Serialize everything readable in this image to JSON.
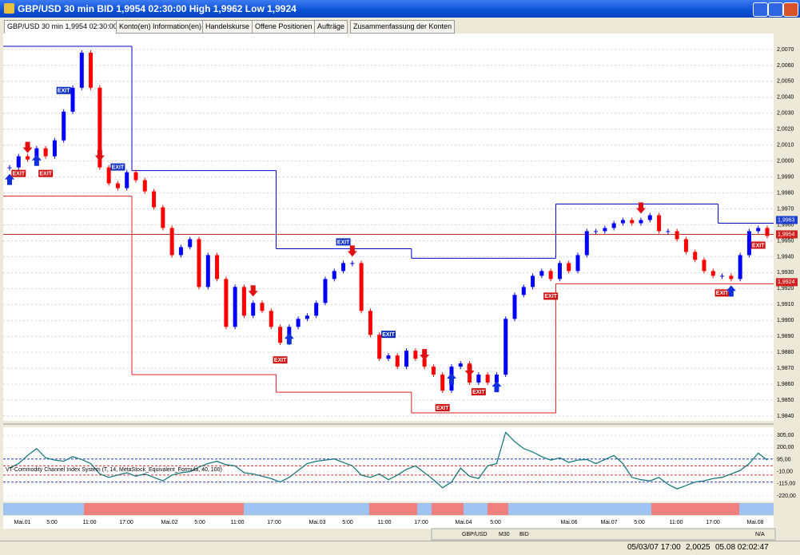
{
  "window": {
    "title": "GBP/USD 30 min BID 1,9954 02:30:00 High 1,9962 Low 1,9924"
  },
  "tabs": [
    "GBP/USD 30 min 1,9954 02:30:00",
    "Konto(en) Information(en)",
    "Handelskurse",
    "Offene Positionen",
    "Aufträge",
    "Zusammenfassung der Konten"
  ],
  "candles": {
    "closes": [
      1.9996,
      2.0003,
      2.0001,
      2.0008,
      2.0003,
      2.0013,
      2.0031,
      2.0046,
      2.0068,
      2.0046,
      1.9996,
      1.9986,
      1.9983,
      1.9993,
      1.9988,
      1.9981,
      1.9971,
      1.9958,
      1.9941,
      1.9946,
      1.9951,
      1.9921,
      1.9941,
      1.9926,
      1.9896,
      1.9921,
      1.9903,
      1.9911,
      1.9906,
      1.9896,
      1.9886,
      1.9896,
      1.9901,
      1.9903,
      1.9911,
      1.9926,
      1.9931,
      1.9936,
      1.9936,
      1.9906,
      1.9891,
      1.9876,
      1.9878,
      1.9871,
      1.9881,
      1.9876,
      1.9871,
      1.9866,
      1.9856,
      1.9871,
      1.9873,
      1.9861,
      1.9866,
      1.9861,
      1.9866,
      1.9901,
      1.9916,
      1.9921,
      1.9928,
      1.9931,
      1.9926,
      1.9936,
      1.9931,
      1.9941,
      1.9956,
      1.9956,
      1.9958,
      1.9961,
      1.9963,
      1.9961,
      1.9963,
      1.9966,
      1.9956,
      1.9956,
      1.9951,
      1.9943,
      1.9938,
      1.9931,
      1.9928,
      1.9928,
      1.9926,
      1.9941,
      1.9956,
      1.9958,
      1.9953
    ],
    "up_color": "#0000ff",
    "down_color": "#ff0000",
    "ylim": [
      1.9837,
      2.008
    ],
    "yticks": [
      {
        "value": 1.984,
        "label": "1,9840"
      },
      {
        "value": 1.985,
        "label": "1,9850"
      },
      {
        "value": 1.986,
        "label": "1,9860"
      },
      {
        "value": 1.987,
        "label": "1,9870"
      },
      {
        "value": 1.988,
        "label": "1,9880"
      },
      {
        "value": 1.989,
        "label": "1,9890"
      },
      {
        "value": 1.99,
        "label": "1,9900"
      },
      {
        "value": 1.991,
        "label": "1,9910"
      },
      {
        "value": 1.992,
        "label": "1,9920"
      },
      {
        "value": 1.993,
        "label": "1,9930"
      },
      {
        "value": 1.994,
        "label": "1,9940"
      },
      {
        "value": 1.995,
        "label": "1,9950"
      },
      {
        "value": 1.996,
        "label": "1,9960"
      },
      {
        "value": 1.997,
        "label": "1,9970"
      },
      {
        "value": 1.998,
        "label": "1,9980"
      },
      {
        "value": 1.999,
        "label": "1,9990"
      },
      {
        "value": 2.0,
        "label": "2,0000"
      },
      {
        "value": 2.001,
        "label": "2,0010"
      },
      {
        "value": 2.002,
        "label": "2,0020"
      },
      {
        "value": 2.003,
        "label": "2,0030"
      },
      {
        "value": 2.004,
        "label": "2,0040"
      },
      {
        "value": 2.005,
        "label": "2,0050"
      },
      {
        "value": 2.006,
        "label": "2,0060"
      },
      {
        "value": 2.007,
        "label": "2,0070"
      }
    ],
    "upper_steps": [
      {
        "start": 0,
        "level": 2.0072
      },
      {
        "start": 14,
        "level": 1.9994
      },
      {
        "start": 30,
        "level": 1.9945
      },
      {
        "start": 45,
        "level": 1.9939
      },
      {
        "start": 61,
        "level": 1.9973
      },
      {
        "start": 79,
        "level": 1.9961
      }
    ],
    "lower_steps": [
      {
        "start": 0,
        "level": 1.9978
      },
      {
        "start": 14,
        "level": 1.9866
      },
      {
        "start": 30,
        "level": 1.9855
      },
      {
        "start": 45,
        "level": 1.9842
      },
      {
        "start": 61,
        "level": 1.9923
      }
    ],
    "upper_color": "#0000cc",
    "lower_color": "#e02020",
    "current_line": 1.9954,
    "price_tags": [
      {
        "value": 1.9963,
        "label": "1,9963",
        "color": "#1c3fd0"
      },
      {
        "value": 1.9954,
        "label": "1,9954",
        "color": "#d02020"
      },
      {
        "value": 1.9924,
        "label": "1,9924",
        "color": "#d02020"
      }
    ],
    "signals": [
      {
        "kind": "buy",
        "index": 0
      },
      {
        "kind": "sell",
        "index": 2
      },
      {
        "kind": "exit",
        "index": 1,
        "label": "EXIT"
      },
      {
        "kind": "buy",
        "index": 3
      },
      {
        "kind": "exit",
        "index": 4,
        "label": "EXIT"
      },
      {
        "kind": "exit",
        "index": 6,
        "label": "EXIT"
      },
      {
        "kind": "sell",
        "index": 10
      },
      {
        "kind": "exit",
        "index": 12,
        "label": "EXIT"
      },
      {
        "kind": "sell",
        "index": 27
      },
      {
        "kind": "buy",
        "index": 31
      },
      {
        "kind": "exit",
        "index": 30,
        "label": "EXIT"
      },
      {
        "kind": "exit",
        "index": 37,
        "label": "EXIT"
      },
      {
        "kind": "sell",
        "index": 38
      },
      {
        "kind": "exit",
        "index": 42,
        "label": "EXIT"
      },
      {
        "kind": "sell",
        "index": 46
      },
      {
        "kind": "buy",
        "index": 49
      },
      {
        "kind": "exit",
        "index": 48,
        "label": "EXIT"
      },
      {
        "kind": "sell",
        "index": 51
      },
      {
        "kind": "exit",
        "index": 52,
        "label": "EXIT"
      },
      {
        "kind": "buy",
        "index": 54
      },
      {
        "kind": "exit",
        "index": 60,
        "label": "EXIT"
      },
      {
        "kind": "sell",
        "index": 70
      },
      {
        "kind": "exit",
        "index": 79,
        "label": "EXIT"
      },
      {
        "kind": "buy",
        "index": 80
      },
      {
        "kind": "exit",
        "index": 83,
        "label": "EXIT"
      }
    ]
  },
  "indicator": {
    "label": "VT-Commodity Channel Index System (T, 14, MetaStock_Equivalent_Formula, 40, 100)",
    "values": [
      20,
      60,
      130,
      190,
      110,
      90,
      80,
      120,
      95,
      60,
      -30,
      -60,
      -40,
      -20,
      -50,
      -30,
      -60,
      -90,
      -40,
      -20,
      -10,
      30,
      60,
      80,
      50,
      40,
      -20,
      -30,
      -50,
      -70,
      -100,
      -60,
      0,
      60,
      80,
      90,
      100,
      70,
      40,
      -40,
      -60,
      -30,
      -80,
      -40,
      10,
      40,
      -20,
      -80,
      -150,
      -100,
      20,
      -50,
      -70,
      40,
      60,
      330,
      250,
      190,
      160,
      120,
      90,
      110,
      70,
      90,
      95,
      60,
      95,
      130,
      60,
      -60,
      -80,
      -90,
      -60,
      -120,
      -160,
      -130,
      -100,
      -90,
      -70,
      -60,
      -30,
      0,
      60,
      150,
      90
    ],
    "color": "#1a7a7a",
    "ylim": [
      -269,
      375
    ],
    "yticks": [
      {
        "value": 305,
        "label": "305,00"
      },
      {
        "value": 200,
        "label": "200,00"
      },
      {
        "value": 95,
        "label": "95,00"
      },
      {
        "value": -10,
        "label": "-10,00"
      },
      {
        "value": -115,
        "label": "-115,00"
      },
      {
        "value": -220,
        "label": "-220,00"
      }
    ],
    "levels": [
      {
        "value": 100,
        "color": "#3040c0"
      },
      {
        "value": 40,
        "color": "#d03030"
      },
      {
        "value": -40,
        "color": "#d03030"
      },
      {
        "value": -100,
        "color": "#3040c0"
      }
    ]
  },
  "time_labels": [
    "Mai.01",
    "5:00",
    "11:00",
    "17:00",
    "Mai.02",
    "5:00",
    "11:00",
    "17:00",
    "Mai.03",
    "5:00",
    "11:00",
    "17:00",
    "Mai.04",
    "5:00",
    "Mai.06",
    "Mai.07",
    "5:00",
    "11:00",
    "17:00",
    "Mai.08"
  ],
  "toolbar": [
    "GBP/USD",
    "M30",
    "BID",
    "N/A"
  ],
  "status": {
    "time": "05/03/07 17:00",
    "price": "2,0025",
    "clock": "05.08 02:02:47"
  }
}
